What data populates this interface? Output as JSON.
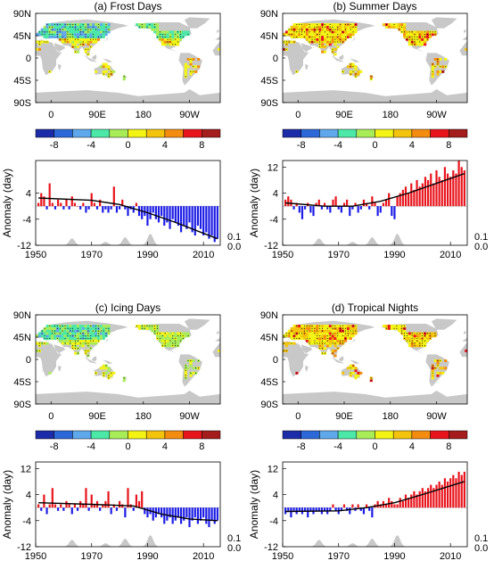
{
  "colors": {
    "land": "#c8c8c8",
    "ocean": "#ffffff",
    "positive_bar": "#e8141c",
    "negative_bar": "#1c1ce6",
    "trend": "#000000",
    "volcanic": "#c8c8c8",
    "colorbar": [
      "#1c2ca8",
      "#2c68d8",
      "#60a8ec",
      "#4ce8a8",
      "#a8ec58",
      "#f4f414",
      "#f4c40c",
      "#f48c10",
      "#e8141c",
      "#a41c1c"
    ]
  },
  "colorbar_labels": [
    "-8",
    "-4",
    "0",
    "4",
    "8"
  ],
  "map_lat_labels": [
    "90N",
    "45N",
    "0",
    "45S",
    "90S"
  ],
  "map_lon_labels": [
    "0",
    "90E",
    "180",
    "90W"
  ],
  "ts_ylabel": "Anomaly (day)",
  "ts_xticks": [
    "1950",
    "1970",
    "1990",
    "2010"
  ],
  "volcanic_labels": [
    "0.1",
    "0.0"
  ],
  "chart_data": [
    {
      "type": "bar",
      "title": "(a) Frost Days",
      "ylabel": "Anomaly (day)",
      "yticks": [
        "4",
        "-4",
        "-12"
      ],
      "ylim": [
        -12,
        14
      ],
      "x": [
        1951,
        1952,
        1953,
        1954,
        1955,
        1956,
        1957,
        1958,
        1959,
        1960,
        1961,
        1962,
        1963,
        1964,
        1965,
        1966,
        1967,
        1968,
        1969,
        1970,
        1971,
        1972,
        1973,
        1974,
        1975,
        1976,
        1977,
        1978,
        1979,
        1980,
        1981,
        1982,
        1983,
        1984,
        1985,
        1986,
        1987,
        1988,
        1989,
        1990,
        1991,
        1992,
        1993,
        1994,
        1995,
        1996,
        1997,
        1998,
        1999,
        2000,
        2001,
        2002,
        2003,
        2004,
        2005,
        2006,
        2007,
        2008,
        2009,
        2010,
        2011,
        2012,
        2013,
        2014,
        2015
      ],
      "values": [
        1,
        4,
        3,
        -1,
        7,
        1,
        -1,
        2,
        1,
        -1,
        2,
        -1,
        3,
        1,
        0,
        -1,
        1,
        -2,
        -1,
        4,
        1,
        -1,
        2,
        -2,
        -1,
        -2,
        -1,
        6,
        -2,
        -1,
        2,
        -1,
        -3,
        -1,
        -2,
        1,
        -3,
        -4,
        -3,
        -6,
        -4,
        -2,
        -4,
        -5,
        -3,
        -6,
        -5,
        -7,
        -4,
        -5,
        -6,
        -8,
        -6,
        -7,
        -5,
        -8,
        -9,
        -6,
        -7,
        -9,
        -8,
        -10,
        -9,
        -11,
        -10
      ],
      "trend": [
        [
          1951,
          2.5
        ],
        [
          1970,
          1.8
        ],
        [
          1980,
          0.5
        ],
        [
          1990,
          -2
        ],
        [
          2000,
          -5
        ],
        [
          2015,
          -10
        ]
      ]
    },
    {
      "type": "bar",
      "title": "(b) Summer Days",
      "ylabel": "Anomaly (day)",
      "yticks": [
        "12",
        "4",
        "-4",
        "-12"
      ],
      "ylim": [
        -12,
        14
      ],
      "x": [
        1951,
        1952,
        1953,
        1954,
        1955,
        1956,
        1957,
        1958,
        1959,
        1960,
        1961,
        1962,
        1963,
        1964,
        1965,
        1966,
        1967,
        1968,
        1969,
        1970,
        1971,
        1972,
        1973,
        1974,
        1975,
        1976,
        1977,
        1978,
        1979,
        1980,
        1981,
        1982,
        1983,
        1984,
        1985,
        1986,
        1987,
        1988,
        1989,
        1990,
        1991,
        1992,
        1993,
        1994,
        1995,
        1996,
        1997,
        1998,
        1999,
        2000,
        2001,
        2002,
        2003,
        2004,
        2005,
        2006,
        2007,
        2008,
        2009,
        2010,
        2011,
        2012,
        2013,
        2014,
        2015
      ],
      "values": [
        2,
        3,
        2,
        -1,
        1,
        -2,
        -4,
        -1,
        1,
        -2,
        -3,
        1,
        2,
        -1,
        1,
        -1,
        -2,
        2,
        3,
        -1,
        -2,
        1,
        2,
        -3,
        -1,
        1,
        -2,
        -1,
        2,
        1,
        -1,
        3,
        1,
        -3,
        -2,
        1,
        2,
        4,
        -3,
        -4,
        3,
        4,
        5,
        6,
        4,
        7,
        5,
        8,
        6,
        7,
        9,
        8,
        10,
        7,
        11,
        9,
        8,
        12,
        10,
        9,
        11,
        10,
        14,
        12,
        11
      ],
      "trend": [
        [
          1951,
          1
        ],
        [
          1965,
          0
        ],
        [
          1975,
          0
        ],
        [
          1985,
          1.5
        ],
        [
          1995,
          4
        ],
        [
          2015,
          10
        ]
      ]
    },
    {
      "type": "bar",
      "title": "(c) Icing Days",
      "ylabel": "Anomaly (day)",
      "yticks": [
        "12",
        "4",
        "-4",
        "-12"
      ],
      "ylim": [
        -12,
        14
      ],
      "x": [
        1951,
        1952,
        1953,
        1954,
        1955,
        1956,
        1957,
        1958,
        1959,
        1960,
        1961,
        1962,
        1963,
        1964,
        1965,
        1966,
        1967,
        1968,
        1969,
        1970,
        1971,
        1972,
        1973,
        1974,
        1975,
        1976,
        1977,
        1978,
        1979,
        1980,
        1981,
        1982,
        1983,
        1984,
        1985,
        1986,
        1987,
        1988,
        1989,
        1990,
        1991,
        1992,
        1993,
        1994,
        1995,
        1996,
        1997,
        1998,
        1999,
        2000,
        2001,
        2002,
        2003,
        2004,
        2005,
        2006,
        2007,
        2008,
        2009,
        2010,
        2011,
        2012,
        2013,
        2014,
        2015
      ],
      "values": [
        1,
        -1,
        4,
        -2,
        1,
        6,
        1,
        -1,
        1,
        -1,
        2,
        1,
        -2,
        1,
        -1,
        2,
        1,
        6,
        -1,
        4,
        1,
        2,
        -1,
        1,
        2,
        5,
        -2,
        1,
        -1,
        2,
        1,
        -3,
        6,
        1,
        -1,
        4,
        2,
        5,
        -2,
        -3,
        -2,
        -4,
        -3,
        -2,
        -3,
        -5,
        -4,
        -3,
        -5,
        -4,
        -3,
        -5,
        -4,
        -3,
        -6,
        -4,
        -3,
        -5,
        -4,
        -3,
        -5,
        -6,
        -4,
        -5,
        -4
      ],
      "trend": [
        [
          1951,
          1.5
        ],
        [
          1970,
          1
        ],
        [
          1985,
          0.5
        ],
        [
          1995,
          -2
        ],
        [
          2005,
          -3.5
        ],
        [
          2015,
          -4
        ]
      ]
    },
    {
      "type": "bar",
      "title": "(d) Tropical Nights",
      "ylabel": "Anomaly (day)",
      "yticks": [
        "12",
        "4",
        "-4",
        "-12"
      ],
      "ylim": [
        -12,
        14
      ],
      "x": [
        1951,
        1952,
        1953,
        1954,
        1955,
        1956,
        1957,
        1958,
        1959,
        1960,
        1961,
        1962,
        1963,
        1964,
        1965,
        1966,
        1967,
        1968,
        1969,
        1970,
        1971,
        1972,
        1973,
        1974,
        1975,
        1976,
        1977,
        1978,
        1979,
        1980,
        1981,
        1982,
        1983,
        1984,
        1985,
        1986,
        1987,
        1988,
        1989,
        1990,
        1991,
        1992,
        1993,
        1994,
        1995,
        1996,
        1997,
        1998,
        1999,
        2000,
        2001,
        2002,
        2003,
        2004,
        2005,
        2006,
        2007,
        2008,
        2009,
        2010,
        2011,
        2012,
        2013,
        2014,
        2015
      ],
      "values": [
        -2,
        -1,
        -3,
        -1,
        -2,
        -1,
        -2,
        -1,
        -3,
        -1,
        -2,
        -1,
        -1,
        -2,
        -1,
        -2,
        -1,
        1,
        -1,
        -2,
        -1,
        1,
        -1,
        -2,
        1,
        -1,
        1,
        -1,
        -2,
        1,
        -1,
        -3,
        1,
        2,
        1,
        2,
        1,
        3,
        2,
        1,
        1,
        3,
        2,
        4,
        3,
        4,
        5,
        4,
        5,
        6,
        5,
        6,
        7,
        6,
        7,
        8,
        7,
        9,
        8,
        9,
        10,
        9,
        11,
        10,
        11
      ],
      "trend": [
        [
          1951,
          -1.2
        ],
        [
          1970,
          -1
        ],
        [
          1980,
          0
        ],
        [
          1990,
          1.5
        ],
        [
          2000,
          4
        ],
        [
          2015,
          8
        ]
      ]
    }
  ]
}
